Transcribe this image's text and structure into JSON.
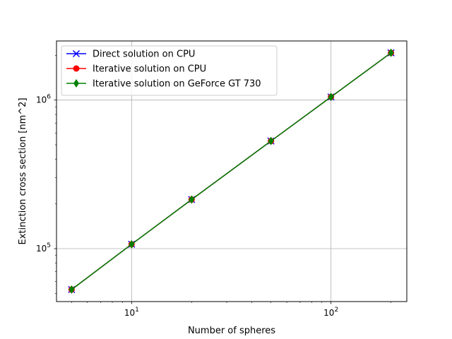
{
  "chart_data": {
    "type": "line",
    "title": "",
    "xlabel": "Number of spheres",
    "ylabel": "Extinction cross section [nm^2]",
    "xscale": "log",
    "yscale": "log",
    "xlim": [
      4.2,
      240
    ],
    "ylim": [
      44000,
      2500000
    ],
    "grid": true,
    "legend_position": "upper left",
    "x_ticks": [
      {
        "value": 10,
        "base": "10",
        "exp": "1"
      },
      {
        "value": 100,
        "base": "10",
        "exp": "2"
      }
    ],
    "y_ticks": [
      {
        "value": 100000,
        "base": "10",
        "exp": "5"
      },
      {
        "value": 1000000,
        "base": "10",
        "exp": "6"
      }
    ],
    "x": [
      5,
      10,
      20,
      50,
      100,
      200
    ],
    "series": [
      {
        "name": "Direct solution on CPU",
        "color": "#0000ff",
        "marker": "x",
        "values": [
          53000,
          107000,
          214000,
          530000,
          1050000,
          2080000
        ]
      },
      {
        "name": "Iterative solution on CPU",
        "color": "#ff0000",
        "marker": "circle",
        "values": [
          53000,
          107000,
          214000,
          530000,
          1050000,
          2080000
        ]
      },
      {
        "name": "Iterative solution on GeForce GT 730",
        "color": "#008000",
        "marker": "thin-diamond",
        "values": [
          53000,
          107000,
          214000,
          530000,
          1050000,
          2080000
        ]
      }
    ]
  }
}
